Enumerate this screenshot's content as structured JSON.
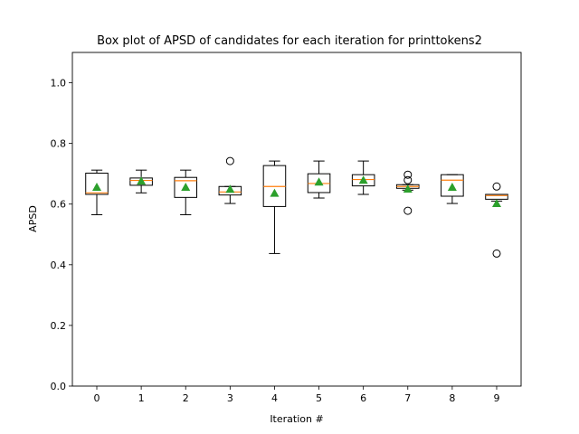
{
  "chart_data": {
    "type": "box",
    "title": "Box plot of APSD of candidates for each iteration for printtokens2",
    "xlabel": "Iteration #",
    "ylabel": "APSD",
    "ylim": [
      0.0,
      1.1
    ],
    "yticks": [
      "0.0",
      "0.2",
      "0.4",
      "0.6",
      "0.8",
      "1.0"
    ],
    "categories": [
      "0",
      "1",
      "2",
      "3",
      "4",
      "5",
      "6",
      "7",
      "8",
      "9"
    ],
    "boxes": [
      {
        "category": "0",
        "whisker_low": 0.565,
        "q1": 0.632,
        "median": 0.637,
        "q3": 0.702,
        "whisker_high": 0.712,
        "mean": 0.656,
        "outliers": []
      },
      {
        "category": "1",
        "whisker_low": 0.637,
        "q1": 0.662,
        "median": 0.678,
        "q3": 0.686,
        "whisker_high": 0.712,
        "mean": 0.676,
        "outliers": []
      },
      {
        "category": "2",
        "whisker_low": 0.565,
        "q1": 0.622,
        "median": 0.677,
        "q3": 0.688,
        "whisker_high": 0.712,
        "mean": 0.656,
        "outliers": []
      },
      {
        "category": "3",
        "whisker_low": 0.602,
        "q1": 0.63,
        "median": 0.64,
        "q3": 0.658,
        "whisker_high": 0.658,
        "mean": 0.649,
        "outliers": [
          0.742
        ]
      },
      {
        "category": "4",
        "whisker_low": 0.437,
        "q1": 0.592,
        "median": 0.658,
        "q3": 0.727,
        "whisker_high": 0.742,
        "mean": 0.636,
        "outliers": []
      },
      {
        "category": "5",
        "whisker_low": 0.62,
        "q1": 0.638,
        "median": 0.668,
        "q3": 0.7,
        "whisker_high": 0.742,
        "mean": 0.673,
        "outliers": []
      },
      {
        "category": "6",
        "whisker_low": 0.632,
        "q1": 0.66,
        "median": 0.681,
        "q3": 0.697,
        "whisker_high": 0.742,
        "mean": 0.679,
        "outliers": []
      },
      {
        "category": "7",
        "whisker_low": 0.646,
        "q1": 0.652,
        "median": 0.658,
        "q3": 0.664,
        "whisker_high": 0.664,
        "mean": 0.65,
        "outliers": [
          0.697,
          0.679,
          0.578
        ]
      },
      {
        "category": "8",
        "whisker_low": 0.602,
        "q1": 0.626,
        "median": 0.679,
        "q3": 0.697,
        "whisker_high": 0.697,
        "mean": 0.656,
        "outliers": []
      },
      {
        "category": "9",
        "whisker_low": 0.61,
        "q1": 0.616,
        "median": 0.628,
        "q3": 0.632,
        "whisker_high": 0.632,
        "mean": 0.602,
        "outliers": [
          0.658,
          0.437
        ]
      }
    ],
    "grid": false,
    "colors": {
      "box": "#000000",
      "median": "#ff7f0e",
      "mean": "#2ca02c",
      "outlier": "#000000"
    }
  }
}
